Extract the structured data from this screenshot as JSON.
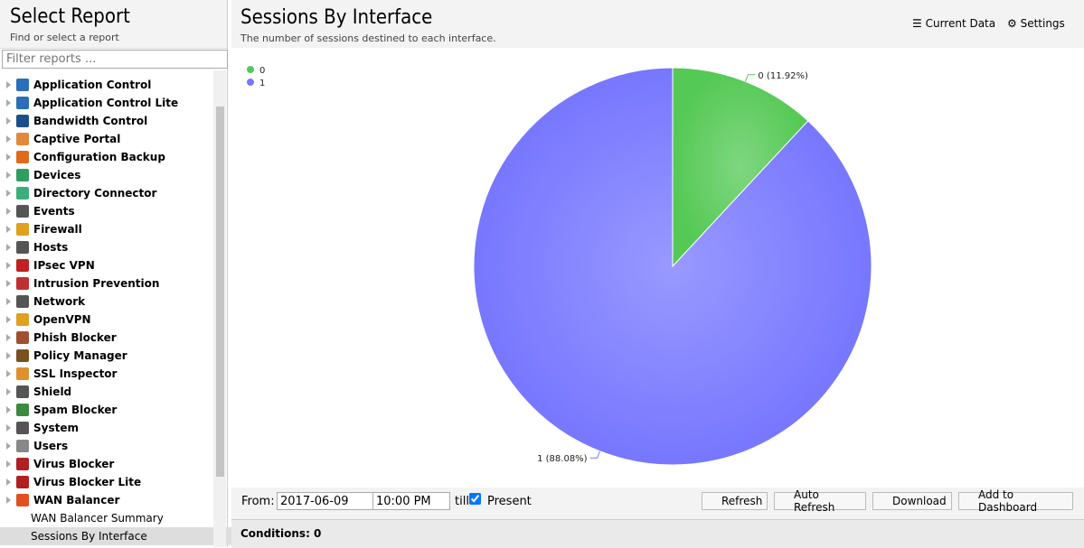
{
  "sidebar": {
    "title": "Select Report",
    "subtitle": "Find or select a report",
    "filter_placeholder": "Filter reports ...",
    "items": [
      "Application Control",
      "Application Control Lite",
      "Bandwidth Control",
      "Captive Portal",
      "Configuration Backup",
      "Devices",
      "Directory Connector",
      "Events",
      "Firewall",
      "Hosts",
      "IPsec VPN",
      "Intrusion Prevention",
      "Network",
      "OpenVPN",
      "Phish Blocker",
      "Policy Manager",
      "SSL Inspector",
      "Shield",
      "Spam Blocker",
      "System",
      "Users",
      "Virus Blocker",
      "Virus Blocker Lite",
      "WAN Balancer"
    ],
    "children": [
      "WAN Balancer Summary",
      "Sessions By Interface"
    ]
  },
  "report": {
    "title": "Sessions By Interface",
    "subtitle": "The number of sessions destined to each interface.",
    "actions": [
      "Current Data",
      "Settings"
    ]
  },
  "chart_data": {
    "type": "pie",
    "categories": [
      "0",
      "1"
    ],
    "values": [
      11.92,
      88.08
    ],
    "value_labels": [
      "0 (11.92%)",
      "1 (88.08%)"
    ],
    "colors": [
      "#55c955",
      "#7777ff"
    ],
    "legend": "top-left"
  },
  "toolbar": {
    "from_label": "From:",
    "date": "2017-06-09",
    "time": "10:00 PM",
    "till_label": "till",
    "present_label": "Present",
    "buttons": [
      "Refresh",
      "Auto Refresh",
      "Download",
      "Add to Dashboard"
    ]
  },
  "conditions": "Conditions: 0"
}
